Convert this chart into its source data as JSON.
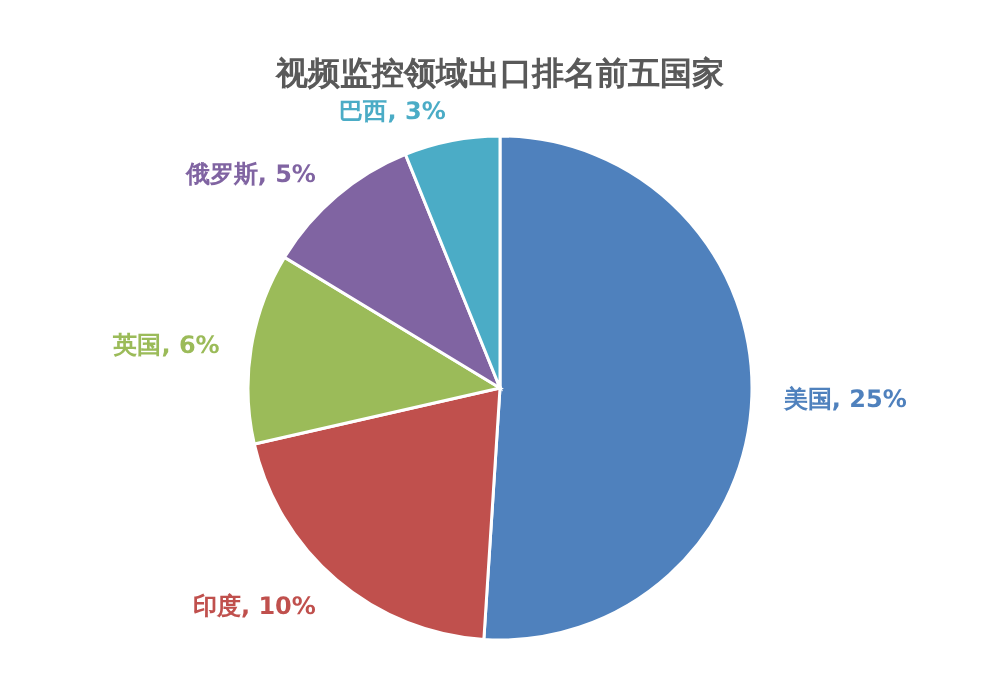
{
  "chart_data": {
    "type": "pie",
    "title": "视频监控领域出口排名前五国家",
    "categories": [
      "美国",
      "印度",
      "英国",
      "俄罗斯",
      "巴西"
    ],
    "values": [
      25,
      10,
      6,
      5,
      3
    ],
    "value_labels": [
      "25%",
      "10%",
      "6%",
      "5%",
      "3%"
    ],
    "colors": [
      "#4f81bd",
      "#c0504d",
      "#9bbb59",
      "#8064a2",
      "#4bacc6"
    ],
    "legend": false
  }
}
